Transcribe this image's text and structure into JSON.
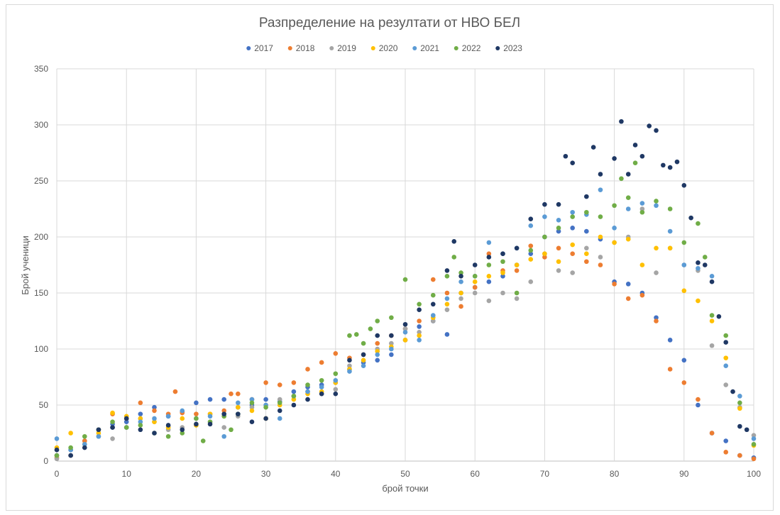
{
  "chart_data": {
    "type": "scatter",
    "title": "Разпределение на резултати от НВО БЕЛ",
    "xlabel": "брой точки",
    "ylabel": "Брой ученици",
    "xlim": [
      0,
      100
    ],
    "ylim": [
      0,
      350
    ],
    "xticks": [
      0,
      10,
      20,
      30,
      40,
      50,
      60,
      70,
      80,
      90,
      100
    ],
    "yticks": [
      0,
      50,
      100,
      150,
      200,
      250,
      300,
      350
    ],
    "grid": true,
    "legend_position": "top",
    "series": [
      {
        "name": "2017",
        "color": "#4472c4",
        "x": [
          0,
          2,
          4,
          6,
          8,
          10,
          12,
          14,
          16,
          18,
          20,
          22,
          24,
          26,
          28,
          30,
          32,
          34,
          36,
          38,
          40,
          42,
          44,
          46,
          48,
          50,
          52,
          54,
          56,
          58,
          60,
          62,
          64,
          66,
          68,
          70,
          72,
          74,
          76,
          78,
          80,
          82,
          84,
          86,
          88,
          90,
          92,
          94,
          96,
          98,
          100
        ],
        "y": [
          5,
          10,
          18,
          28,
          33,
          35,
          42,
          48,
          40,
          44,
          52,
          55,
          55,
          48,
          50,
          55,
          53,
          62,
          66,
          68,
          70,
          82,
          88,
          90,
          95,
          108,
          120,
          125,
          113,
          150,
          155,
          160,
          165,
          175,
          185,
          200,
          205,
          208,
          205,
          198,
          160,
          158,
          150,
          128,
          108,
          90,
          50,
          25,
          18,
          5,
          3
        ]
      },
      {
        "name": "2018",
        "color": "#ed7d31",
        "x": [
          0,
          2,
          4,
          6,
          8,
          10,
          12,
          14,
          16,
          17,
          18,
          20,
          22,
          24,
          25,
          26,
          28,
          30,
          32,
          34,
          36,
          38,
          40,
          42,
          44,
          46,
          48,
          50,
          52,
          54,
          56,
          58,
          60,
          62,
          64,
          66,
          68,
          70,
          72,
          74,
          76,
          78,
          80,
          82,
          84,
          86,
          88,
          90,
          92,
          94,
          96,
          98,
          100
        ],
        "y": [
          3,
          5,
          18,
          28,
          42,
          38,
          52,
          45,
          42,
          62,
          43,
          42,
          42,
          45,
          60,
          60,
          55,
          70,
          68,
          70,
          82,
          88,
          96,
          92,
          95,
          105,
          112,
          118,
          125,
          162,
          150,
          138,
          155,
          185,
          170,
          170,
          192,
          182,
          190,
          185,
          178,
          175,
          158,
          145,
          148,
          125,
          82,
          70,
          55,
          25,
          8,
          5,
          2
        ]
      },
      {
        "name": "2019",
        "color": "#a5a5a5",
        "x": [
          0,
          2,
          4,
          6,
          8,
          10,
          12,
          14,
          16,
          18,
          20,
          22,
          24,
          26,
          28,
          30,
          32,
          34,
          36,
          38,
          40,
          42,
          44,
          46,
          48,
          50,
          52,
          54,
          56,
          58,
          60,
          62,
          64,
          66,
          68,
          70,
          72,
          74,
          76,
          78,
          80,
          82,
          84,
          86,
          88,
          90,
          92,
          94,
          96,
          98,
          100
        ],
        "y": [
          2,
          5,
          15,
          22,
          20,
          30,
          38,
          35,
          28,
          30,
          32,
          35,
          30,
          40,
          48,
          50,
          55,
          58,
          62,
          60,
          64,
          85,
          95,
          100,
          105,
          118,
          115,
          125,
          135,
          145,
          150,
          143,
          150,
          145,
          160,
          185,
          170,
          168,
          190,
          182,
          195,
          200,
          225,
          168,
          190,
          175,
          170,
          103,
          68,
          48,
          23
        ]
      },
      {
        "name": "2020",
        "color": "#ffc000",
        "x": [
          0,
          2,
          4,
          6,
          8,
          10,
          12,
          14,
          16,
          18,
          20,
          22,
          24,
          26,
          28,
          30,
          32,
          34,
          36,
          38,
          40,
          42,
          44,
          46,
          48,
          50,
          52,
          54,
          56,
          58,
          60,
          62,
          64,
          66,
          68,
          70,
          72,
          74,
          76,
          78,
          80,
          82,
          84,
          86,
          88,
          90,
          92,
          94,
          96,
          98,
          100
        ],
        "y": [
          12,
          25,
          15,
          25,
          43,
          40,
          38,
          35,
          30,
          38,
          32,
          42,
          40,
          48,
          45,
          38,
          50,
          55,
          60,
          62,
          70,
          82,
          90,
          98,
          102,
          108,
          112,
          128,
          140,
          150,
          160,
          165,
          168,
          175,
          180,
          185,
          178,
          193,
          185,
          200,
          195,
          198,
          175,
          190,
          190,
          152,
          143,
          125,
          92,
          47,
          14
        ]
      },
      {
        "name": "2021",
        "color": "#5b9bd5",
        "x": [
          0,
          2,
          4,
          6,
          8,
          10,
          12,
          14,
          16,
          18,
          20,
          22,
          24,
          26,
          28,
          30,
          32,
          34,
          36,
          38,
          40,
          42,
          44,
          46,
          48,
          50,
          52,
          54,
          56,
          58,
          60,
          62,
          64,
          66,
          68,
          70,
          72,
          74,
          76,
          78,
          80,
          82,
          84,
          86,
          88,
          90,
          92,
          94,
          96,
          98,
          100
        ],
        "y": [
          20,
          10,
          15,
          22,
          30,
          30,
          35,
          38,
          40,
          45,
          38,
          40,
          22,
          52,
          55,
          50,
          38,
          58,
          62,
          66,
          72,
          80,
          85,
          95,
          100,
          115,
          108,
          130,
          145,
          160,
          165,
          195,
          185,
          190,
          210,
          218,
          215,
          222,
          220,
          242,
          208,
          225,
          230,
          228,
          205,
          175,
          172,
          165,
          85,
          58,
          20
        ]
      },
      {
        "name": "2022",
        "color": "#70ad47",
        "x": [
          0,
          2,
          4,
          6,
          8,
          10,
          12,
          14,
          16,
          18,
          20,
          21,
          22,
          24,
          25,
          26,
          28,
          30,
          32,
          34,
          36,
          38,
          40,
          42,
          43,
          44,
          45,
          46,
          48,
          50,
          52,
          54,
          56,
          57,
          58,
          60,
          62,
          64,
          66,
          68,
          70,
          72,
          74,
          76,
          78,
          80,
          81,
          82,
          83,
          84,
          86,
          88,
          90,
          92,
          93,
          94,
          96,
          98,
          100
        ],
        "y": [
          5,
          12,
          22,
          28,
          35,
          30,
          32,
          25,
          22,
          25,
          38,
          18,
          35,
          40,
          28,
          42,
          52,
          48,
          52,
          58,
          68,
          72,
          78,
          112,
          113,
          105,
          118,
          125,
          128,
          162,
          140,
          148,
          165,
          182,
          168,
          165,
          175,
          178,
          150,
          188,
          200,
          208,
          218,
          222,
          218,
          228,
          252,
          235,
          266,
          222,
          232,
          225,
          195,
          212,
          182,
          130,
          112,
          52,
          15
        ]
      },
      {
        "name": "2023",
        "color": "#1f3864",
        "x": [
          0,
          2,
          4,
          6,
          8,
          10,
          12,
          14,
          16,
          18,
          20,
          22,
          24,
          26,
          28,
          30,
          32,
          34,
          36,
          38,
          40,
          42,
          44,
          46,
          48,
          50,
          52,
          54,
          56,
          57,
          58,
          60,
          62,
          64,
          66,
          68,
          70,
          72,
          73,
          74,
          76,
          77,
          78,
          80,
          81,
          82,
          83,
          84,
          85,
          86,
          87,
          88,
          89,
          90,
          91,
          92,
          93,
          94,
          95,
          96,
          97,
          98,
          99
        ],
        "y": [
          10,
          5,
          12,
          28,
          30,
          38,
          28,
          25,
          32,
          28,
          33,
          33,
          42,
          42,
          35,
          38,
          45,
          50,
          55,
          60,
          60,
          90,
          95,
          112,
          112,
          122,
          135,
          140,
          170,
          196,
          165,
          175,
          182,
          185,
          190,
          216,
          229,
          229,
          272,
          266,
          236,
          280,
          256,
          270,
          303,
          256,
          282,
          272,
          299,
          295,
          264,
          262,
          267,
          246,
          217,
          177,
          175,
          160,
          129,
          106,
          62,
          31,
          28
        ]
      }
    ]
  }
}
